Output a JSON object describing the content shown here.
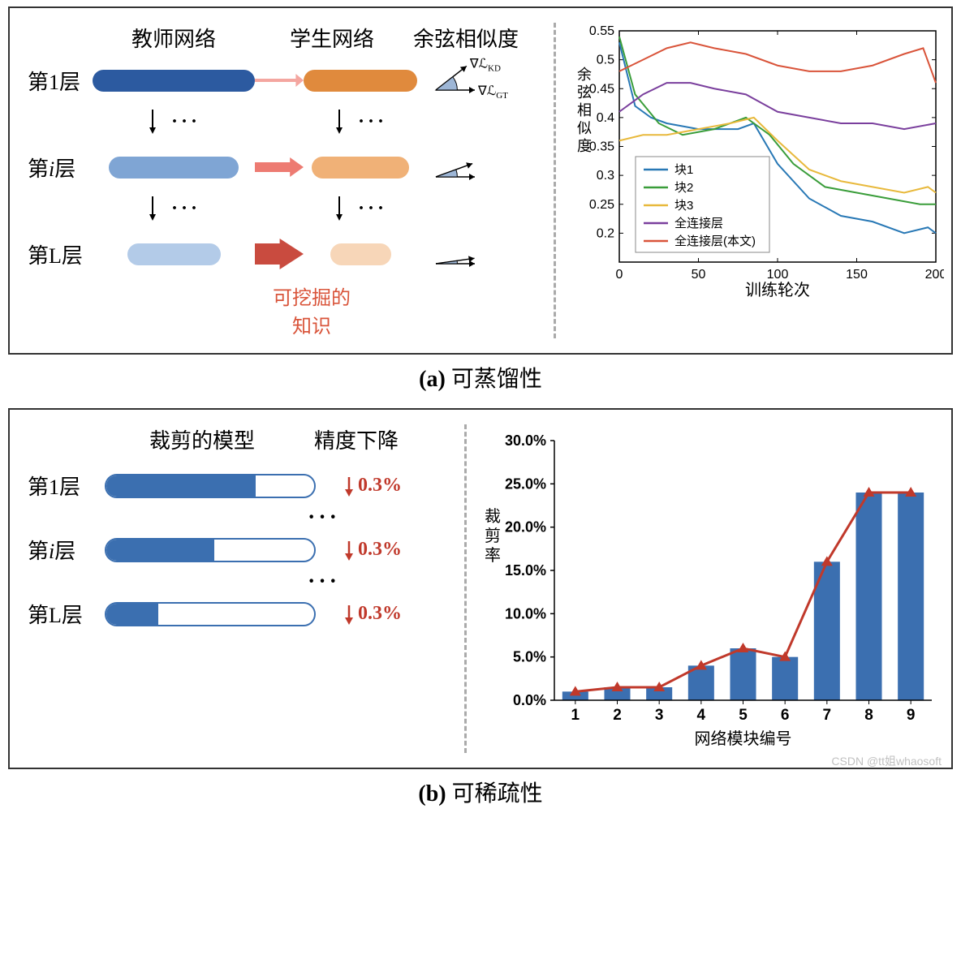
{
  "panel_a": {
    "caption_prefix": "(a) ",
    "caption": "可蒸馏性",
    "teacher_header": "教师网络",
    "student_header": "学生网络",
    "similarity_header": "余弦相似度",
    "knowledge_label_1": "可挖掘的",
    "knowledge_label_2": "知识",
    "grad_kd": "∇ℒ",
    "grad_kd_sub": "KD",
    "grad_gt": "∇ℒ",
    "grad_gt_sub": "GT",
    "layers": [
      {
        "lbl": "第1层",
        "t_w": 200,
        "t_col": "#2c5aa0",
        "s_w": 160,
        "s_col": "#e08a3d",
        "arrow_col": "#f4a6a0",
        "arrow_w": 4,
        "wedge": 38
      },
      {
        "lbl": "第i层",
        "t_w": 160,
        "t_col": "#7fa5d4",
        "s_w": 120,
        "s_col": "#f0b177",
        "arrow_col": "#ed7b72",
        "arrow_w": 12,
        "wedge": 20,
        "italic": true
      },
      {
        "lbl": "第L层",
        "t_w": 115,
        "t_col": "#b3cbe8",
        "s_w": 75,
        "s_col": "#f7d6b8",
        "arrow_col": "#c94b3f",
        "arrow_w": 26,
        "wedge": 8
      }
    ],
    "line_chart": {
      "ylabel": "余弦相似度",
      "xlabel": "训练轮次",
      "ylim": [
        0.15,
        0.55
      ],
      "yticks": [
        0.2,
        0.25,
        0.3,
        0.35,
        0.4,
        0.45,
        0.5,
        0.55
      ],
      "xlim": [
        0,
        200
      ],
      "xticks": [
        0,
        50,
        100,
        150,
        200
      ],
      "legend": [
        "块1",
        "块2",
        "块3",
        "全连接层",
        "全连接层(本文)"
      ],
      "colors": [
        "#2878b5",
        "#3a9d3a",
        "#e8b93c",
        "#7a3f9d",
        "#d9543a"
      ],
      "series": [
        [
          [
            0,
            0.53
          ],
          [
            10,
            0.42
          ],
          [
            20,
            0.4
          ],
          [
            30,
            0.39
          ],
          [
            50,
            0.38
          ],
          [
            75,
            0.38
          ],
          [
            85,
            0.39
          ],
          [
            100,
            0.32
          ],
          [
            120,
            0.26
          ],
          [
            140,
            0.23
          ],
          [
            160,
            0.22
          ],
          [
            180,
            0.2
          ],
          [
            195,
            0.21
          ],
          [
            200,
            0.2
          ]
        ],
        [
          [
            0,
            0.54
          ],
          [
            10,
            0.44
          ],
          [
            25,
            0.39
          ],
          [
            40,
            0.37
          ],
          [
            60,
            0.38
          ],
          [
            80,
            0.4
          ],
          [
            95,
            0.37
          ],
          [
            110,
            0.32
          ],
          [
            130,
            0.28
          ],
          [
            150,
            0.27
          ],
          [
            170,
            0.26
          ],
          [
            190,
            0.25
          ],
          [
            200,
            0.25
          ]
        ],
        [
          [
            0,
            0.36
          ],
          [
            15,
            0.37
          ],
          [
            30,
            0.37
          ],
          [
            50,
            0.38
          ],
          [
            70,
            0.39
          ],
          [
            85,
            0.4
          ],
          [
            100,
            0.36
          ],
          [
            120,
            0.31
          ],
          [
            140,
            0.29
          ],
          [
            160,
            0.28
          ],
          [
            180,
            0.27
          ],
          [
            195,
            0.28
          ],
          [
            200,
            0.27
          ]
        ],
        [
          [
            0,
            0.41
          ],
          [
            15,
            0.44
          ],
          [
            30,
            0.46
          ],
          [
            45,
            0.46
          ],
          [
            60,
            0.45
          ],
          [
            80,
            0.44
          ],
          [
            100,
            0.41
          ],
          [
            120,
            0.4
          ],
          [
            140,
            0.39
          ],
          [
            160,
            0.39
          ],
          [
            180,
            0.38
          ],
          [
            200,
            0.39
          ]
        ],
        [
          [
            0,
            0.48
          ],
          [
            15,
            0.5
          ],
          [
            30,
            0.52
          ],
          [
            45,
            0.53
          ],
          [
            60,
            0.52
          ],
          [
            80,
            0.51
          ],
          [
            100,
            0.49
          ],
          [
            120,
            0.48
          ],
          [
            140,
            0.48
          ],
          [
            160,
            0.49
          ],
          [
            180,
            0.51
          ],
          [
            192,
            0.52
          ],
          [
            200,
            0.46
          ]
        ]
      ]
    }
  },
  "panel_b": {
    "caption_prefix": "(b) ",
    "caption": "可稀疏性",
    "model_header": "裁剪的模型",
    "acc_header": "精度下降",
    "layers": [
      {
        "lbl": "第1层",
        "fill": 0.72,
        "drop": "0.3%"
      },
      {
        "lbl": "第i层",
        "fill": 0.52,
        "drop": "0.3%",
        "italic": true
      },
      {
        "lbl": "第L层",
        "fill": 0.25,
        "drop": "0.3%"
      }
    ],
    "bar_chart": {
      "ylabel": "裁剪率",
      "xlabel": "网络模块编号",
      "ylim": [
        0,
        30
      ],
      "yticks": [
        0,
        5,
        10,
        15,
        20,
        25,
        30
      ],
      "yformat": ".0%",
      "categories": [
        "1",
        "2",
        "3",
        "4",
        "5",
        "6",
        "7",
        "8",
        "9"
      ],
      "values": [
        1.0,
        1.5,
        1.5,
        4.0,
        6.0,
        5.0,
        16.0,
        24.0,
        24.0
      ],
      "bar_color": "#3b6fb0",
      "line_color": "#c0392b",
      "marker_color": "#c0392b"
    }
  },
  "watermark": "CSDN @tt姐whaosoft"
}
